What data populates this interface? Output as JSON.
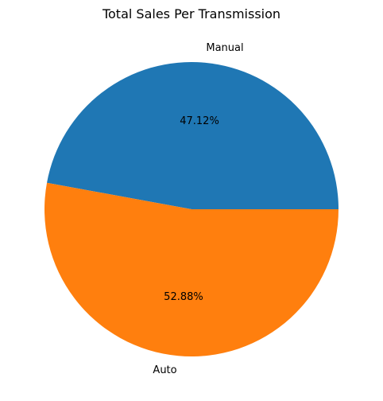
{
  "chart_data": {
    "type": "pie",
    "title": "Total Sales Per Transmission",
    "slices": [
      {
        "label": "Manual",
        "value": 47.12,
        "pct_label": "47.12%",
        "color": "#1f77b4"
      },
      {
        "label": "Auto",
        "value": 52.88,
        "pct_label": "52.88%",
        "color": "#ff7f0e"
      }
    ],
    "start_angle_deg": 0,
    "direction": "counterclockwise",
    "legend": "none"
  }
}
